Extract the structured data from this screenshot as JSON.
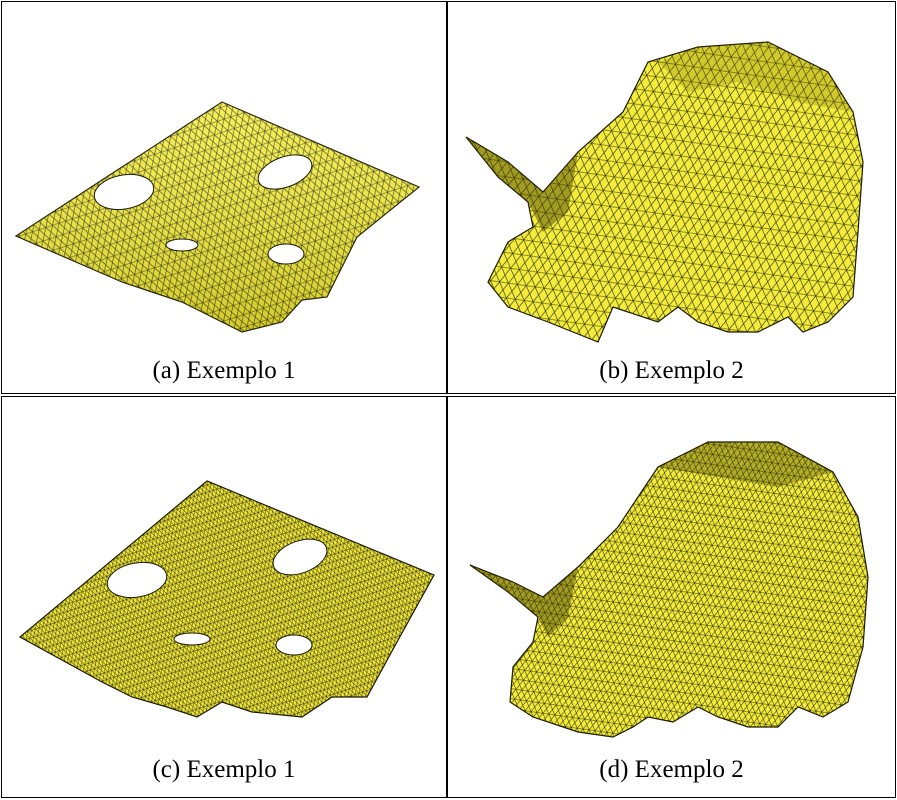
{
  "panels": [
    {
      "id": "a",
      "caption": "(a) Exemplo 1"
    },
    {
      "id": "b",
      "caption": "(b) Exemplo 2"
    },
    {
      "id": "c",
      "caption": "(c) Exemplo 1"
    },
    {
      "id": "d",
      "caption": "(d) Exemplo 2"
    }
  ],
  "colors": {
    "mesh_fill": "#f5ee3a",
    "mesh_shade": "#c9bf1c",
    "mesh_line": "#1a1a00",
    "border": "#000000"
  }
}
